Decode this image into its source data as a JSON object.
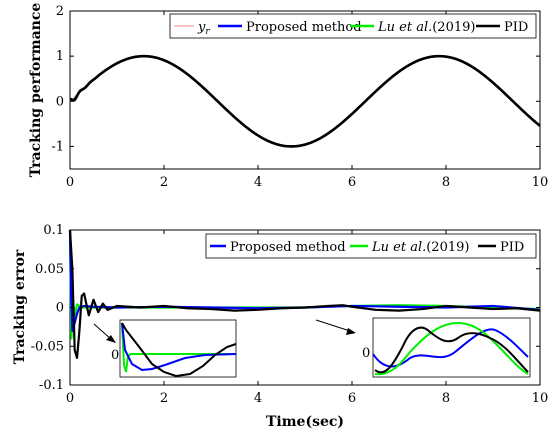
{
  "chart_data": [
    {
      "type": "line",
      "ylabel": "Tracking performance",
      "xlabel": "",
      "xlim": [
        0,
        10
      ],
      "ylim": [
        -1.5,
        2
      ],
      "xticks": [
        "0",
        "2",
        "4",
        "6",
        "8",
        "10"
      ],
      "yticks": [
        "-1",
        "0",
        "1",
        "2"
      ],
      "grid": false,
      "legend_position": "top-right",
      "series": [
        {
          "name": "y_r",
          "color": "#f08080",
          "description": "sin(t)"
        },
        {
          "name": "Proposed method",
          "color": "#0000ff"
        },
        {
          "name": "Lu et al.(2019)",
          "color": "#00ee00"
        },
        {
          "name": "PID",
          "color": "#000000"
        }
      ],
      "legend_labels": {
        "yr_sym": "y",
        "yr_sub": "r",
        "proposed": "Proposed method",
        "lu_ital": "Lu et al.",
        "lu_year": "(2019)",
        "pid": "PID"
      },
      "x": [
        0,
        0.5,
        1,
        1.5,
        2,
        2.5,
        3,
        3.5,
        4,
        4.5,
        5,
        5.5,
        6,
        6.5,
        7,
        7.5,
        8,
        8.5,
        9,
        9.5,
        10
      ],
      "y_reference": [
        0,
        0.48,
        0.84,
        1.0,
        0.91,
        0.6,
        0.14,
        -0.35,
        -0.76,
        -0.98,
        -0.96,
        -0.71,
        -0.28,
        0.22,
        0.66,
        0.94,
        0.99,
        0.8,
        0.41,
        -0.08,
        -0.54
      ]
    },
    {
      "type": "line",
      "ylabel": "Tracking error",
      "xlabel": "Time(sec)",
      "xlim": [
        0,
        10
      ],
      "ylim": [
        -0.1,
        0.1
      ],
      "xticks": [
        "0",
        "2",
        "4",
        "6",
        "8",
        "10"
      ],
      "yticks": [
        "-0.1",
        "-0.05",
        "0",
        "0.05",
        "0.1"
      ],
      "grid": false,
      "legend_position": "top-right",
      "series": [
        {
          "name": "Proposed method",
          "color": "#0000ff",
          "x": [
            0,
            0.02,
            0.05,
            0.1,
            0.15,
            0.2,
            0.3,
            0.5,
            1,
            2,
            3,
            4,
            5,
            6,
            7,
            8,
            9,
            10
          ],
          "y": [
            0.1,
            0.02,
            -0.03,
            -0.02,
            -0.008,
            0.0,
            0.002,
            0.001,
            0.0,
            0.001,
            0.0,
            -0.001,
            0.0,
            0.002,
            0.001,
            0.0,
            0.002,
            -0.003
          ]
        },
        {
          "name": "Lu et al.(2019)",
          "color": "#00ee00",
          "x": [
            0,
            0.03,
            0.06,
            0.1,
            0.15,
            0.25,
            0.5,
            1,
            2,
            3,
            4,
            5,
            6,
            7,
            8,
            9,
            10
          ],
          "y": [
            0.1,
            -0.04,
            0.01,
            -0.01,
            0.004,
            0.0,
            0.0,
            0.0,
            0.0,
            0.0,
            0.0,
            0.0,
            0.002,
            0.003,
            0.002,
            0.0,
            -0.002
          ]
        },
        {
          "name": "PID",
          "color": "#000000",
          "x": [
            0,
            0.05,
            0.1,
            0.15,
            0.2,
            0.25,
            0.3,
            0.4,
            0.5,
            0.6,
            0.7,
            0.8,
            1,
            1.5,
            2,
            2.5,
            3,
            3.5,
            4,
            4.5,
            5,
            5.5,
            5.8,
            6,
            6.5,
            7,
            7.5,
            8,
            8.5,
            9,
            9.5,
            10
          ],
          "y": [
            0.1,
            0.05,
            -0.055,
            -0.065,
            -0.03,
            0.015,
            0.018,
            -0.01,
            0.01,
            -0.006,
            0.005,
            -0.003,
            0.002,
            0.0,
            0.002,
            -0.001,
            -0.002,
            -0.004,
            -0.003,
            -0.001,
            0.0,
            0.002,
            0.003,
            0.001,
            -0.003,
            -0.004,
            -0.002,
            0.002,
            0.0,
            -0.002,
            -0.001,
            -0.004
          ]
        }
      ],
      "legend_labels": {
        "proposed": "Proposed method",
        "lu_ital": "Lu et al.",
        "lu_year": "(2019)",
        "pid": "PID"
      },
      "insets": [
        {
          "tick_label": "0",
          "note": "zoom of initial transient (t ≈ 0–0.5 s)"
        },
        {
          "tick_label": "0",
          "note": "zoom of error around t ≈ 5–8 s"
        }
      ]
    }
  ]
}
